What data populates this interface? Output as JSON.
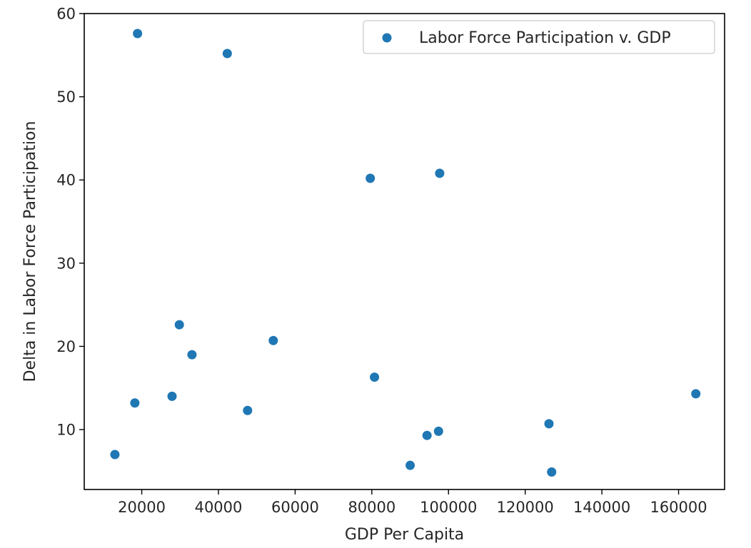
{
  "chart_data": {
    "type": "scatter",
    "title": "",
    "xlabel": "GDP Per Capita",
    "ylabel": "Delta in Labor Force Participation",
    "xlim": [
      5000,
      172000
    ],
    "ylim": [
      2.8,
      60
    ],
    "xticks": [
      20000,
      40000,
      60000,
      80000,
      100000,
      120000,
      140000,
      160000
    ],
    "yticks": [
      10,
      20,
      30,
      40,
      50,
      60
    ],
    "grid": false,
    "legend": "top-right",
    "colors": {
      "series": "#1f77b4",
      "axis": "#000000",
      "legend_border": "#cccccc"
    },
    "series": [
      {
        "name": "Labor Force Participation v. GDP",
        "points": [
          {
            "x": 13000,
            "y": 7.0
          },
          {
            "x": 18200,
            "y": 13.2
          },
          {
            "x": 18900,
            "y": 57.6
          },
          {
            "x": 27900,
            "y": 14.0
          },
          {
            "x": 29800,
            "y": 22.6
          },
          {
            "x": 33100,
            "y": 19.0
          },
          {
            "x": 42300,
            "y": 55.2
          },
          {
            "x": 47600,
            "y": 12.3
          },
          {
            "x": 54300,
            "y": 20.7
          },
          {
            "x": 79600,
            "y": 40.2
          },
          {
            "x": 80700,
            "y": 16.3
          },
          {
            "x": 90000,
            "y": 5.7
          },
          {
            "x": 94400,
            "y": 9.3
          },
          {
            "x": 97400,
            "y": 9.8
          },
          {
            "x": 97700,
            "y": 40.8
          },
          {
            "x": 126200,
            "y": 10.7
          },
          {
            "x": 126900,
            "y": 4.9
          },
          {
            "x": 164500,
            "y": 14.3
          }
        ]
      }
    ]
  }
}
